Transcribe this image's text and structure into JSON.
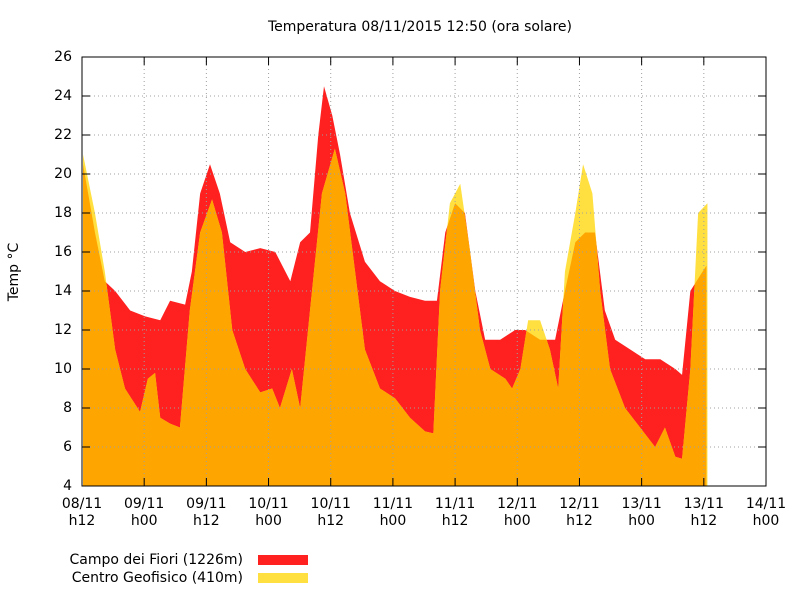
{
  "chart_data": {
    "type": "area",
    "title": "Temperatura 08/11/2015 12:50 (ora solare)",
    "ylabel": "Temp °C",
    "grid": true,
    "legend": "bottom-left",
    "overlap_color": "#ffa500",
    "xlim": [
      0,
      132
    ],
    "xticks": [
      {
        "value": 0,
        "label": "08/11 h12"
      },
      {
        "value": 12,
        "label": "09/11 h00"
      },
      {
        "value": 24,
        "label": "09/11 h12"
      },
      {
        "value": 36,
        "label": "10/11 h00"
      },
      {
        "value": 48,
        "label": "10/11 h12"
      },
      {
        "value": 60,
        "label": "11/11 h00"
      },
      {
        "value": 72,
        "label": "11/11 h12"
      },
      {
        "value": 84,
        "label": "12/11 h00"
      },
      {
        "value": 96,
        "label": "12/11 h12"
      },
      {
        "value": 108,
        "label": "13/11 h00"
      },
      {
        "value": 120,
        "label": "13/11 h12"
      },
      {
        "value": 132,
        "label": "14/11 h00"
      }
    ],
    "ylim": [
      4,
      26
    ],
    "yticks": [
      4,
      6,
      8,
      10,
      12,
      14,
      16,
      18,
      20,
      22,
      24,
      26
    ],
    "series": [
      {
        "name": "Campo dei Fiori (1226m)",
        "color": "#ff2020",
        "x": [
          0.2,
          2.5,
          4.4,
          6.4,
          9.3,
          12.2,
          15.1,
          17.0,
          19.9,
          21.2,
          22.8,
          24.7,
          26.6,
          28.6,
          31.5,
          34.4,
          37.3,
          40.2,
          42.1,
          44.0,
          45.6,
          46.7,
          48.3,
          49.8,
          51.7,
          54.6,
          57.5,
          60.4,
          63.3,
          66.2,
          68.5,
          70.1,
          72.0,
          73.9,
          75.9,
          77.8,
          80.7,
          83.6,
          85.5,
          88.4,
          91.3,
          93.2,
          95.2,
          97.1,
          99.0,
          100.9,
          102.9,
          105.8,
          108.7,
          111.6,
          114.5,
          115.8,
          117.4,
          119.3,
          120.5
        ],
        "values": [
          20.5,
          17,
          14.5,
          14,
          13,
          12.7,
          12.5,
          13.5,
          13.3,
          15,
          19,
          20.5,
          19,
          16.5,
          16,
          16.2,
          16,
          14.5,
          16.5,
          17,
          22,
          24.5,
          23,
          21,
          18,
          15.5,
          14.5,
          14,
          13.7,
          13.5,
          13.5,
          17,
          18.5,
          18,
          14,
          11.5,
          11.5,
          12,
          12,
          11.5,
          11.5,
          14,
          16.5,
          17,
          17,
          13,
          11.5,
          11,
          10.5,
          10.5,
          10,
          9.7,
          14,
          14.8,
          15.3
        ]
      },
      {
        "name": "Centro Geofisico (410m)",
        "color": "#ffe040",
        "x": [
          0.2,
          2.5,
          4.4,
          6.4,
          8.3,
          11.2,
          12.7,
          14.1,
          15.1,
          17.0,
          18.9,
          20.8,
          22.8,
          25.1,
          27.0,
          29.0,
          31.5,
          34.4,
          36.7,
          38.2,
          40.5,
          42.1,
          44.0,
          46.3,
          48.8,
          50.8,
          52.7,
          54.6,
          57.5,
          60.4,
          63.3,
          66.2,
          67.8,
          69.1,
          71.0,
          73.0,
          74.9,
          76.8,
          78.8,
          81.7,
          83.0,
          84.6,
          86.1,
          88.4,
          90.3,
          91.9,
          93.2,
          95.2,
          96.7,
          98.5,
          100.0,
          101.9,
          104.8,
          107.7,
          110.6,
          112.5,
          114.5,
          115.8,
          117.4,
          118.9,
          120.7
        ],
        "values": [
          21,
          18,
          15,
          11,
          9,
          7.8,
          9.5,
          9.8,
          7.5,
          7.2,
          7,
          13,
          17,
          18.7,
          17,
          12,
          10,
          8.8,
          9,
          8,
          10,
          8,
          13,
          19,
          21.3,
          19,
          15,
          11,
          9,
          8.5,
          7.5,
          6.8,
          6.7,
          14,
          18.5,
          19.5,
          16,
          12,
          10,
          9.5,
          9,
          10,
          12.5,
          12.5,
          11,
          9,
          15,
          18,
          20.5,
          19,
          14,
          10,
          8,
          7,
          6,
          7,
          5.5,
          5.4,
          10,
          18,
          18.5
        ]
      }
    ]
  }
}
